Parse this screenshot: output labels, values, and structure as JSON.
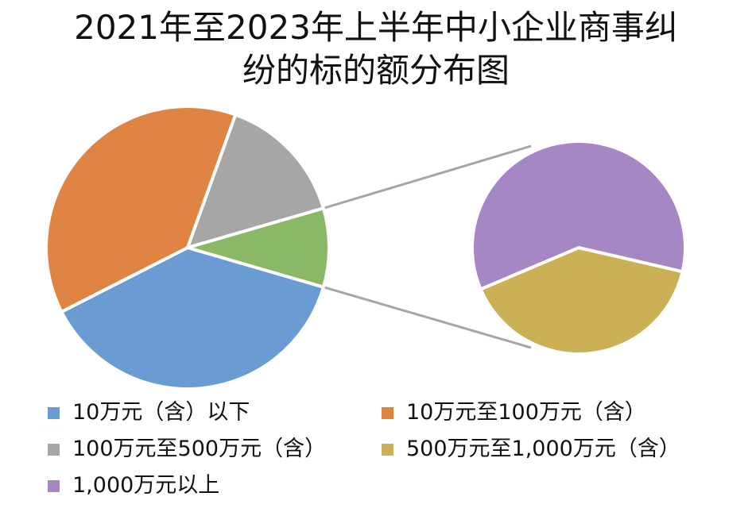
{
  "chart_data": {
    "type": "pie",
    "subtype": "pie-of-pie",
    "title_lines": [
      "2021年至2023年上半年中小企业商事纠",
      "纷的标的额分布图"
    ],
    "slices": [
      {
        "label": "10万元（含）以下",
        "value": 38,
        "color": "#6a9bd2"
      },
      {
        "label": "10万元至100万元（含）",
        "value": 38,
        "color": "#df8443"
      },
      {
        "label": "100万元至500万元（含）",
        "value": 15,
        "color": "#a6a6a6"
      },
      {
        "label": "500万元至1,000万元（含）",
        "value": 3.6,
        "color": "#cbb055"
      },
      {
        "label": "1,000万元以上",
        "value": 5.4,
        "color": "#a487c3"
      }
    ],
    "main_pie_order": [
      0,
      1,
      2
    ],
    "other_slice": {
      "color": "#8ab865",
      "members": [
        3,
        4
      ]
    },
    "secondary_pie_order": [
      4,
      3
    ],
    "legend_position": "bottom"
  }
}
